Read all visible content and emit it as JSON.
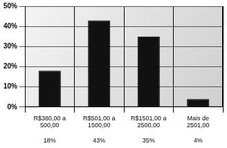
{
  "chart_data": {
    "type": "bar",
    "categories": [
      "R$380,00 a 500,00",
      "R$501,00 a 1500,00",
      "R$1501,00 a 2500,00",
      "Mais de 2501,00"
    ],
    "values": [
      18,
      43,
      35,
      4
    ],
    "value_labels": [
      "18%",
      "43%",
      "35%",
      "4%"
    ],
    "data_labels": true,
    "color": "#111111",
    "ylim": [
      0,
      50
    ],
    "yticks": [
      {
        "value": 0,
        "label": "0%"
      },
      {
        "value": 10,
        "label": "10%"
      },
      {
        "value": 20,
        "label": "20%"
      },
      {
        "value": 30,
        "label": "30%"
      },
      {
        "value": 40,
        "label": "40%"
      },
      {
        "value": 50,
        "label": "50%"
      }
    ],
    "grid": true
  }
}
